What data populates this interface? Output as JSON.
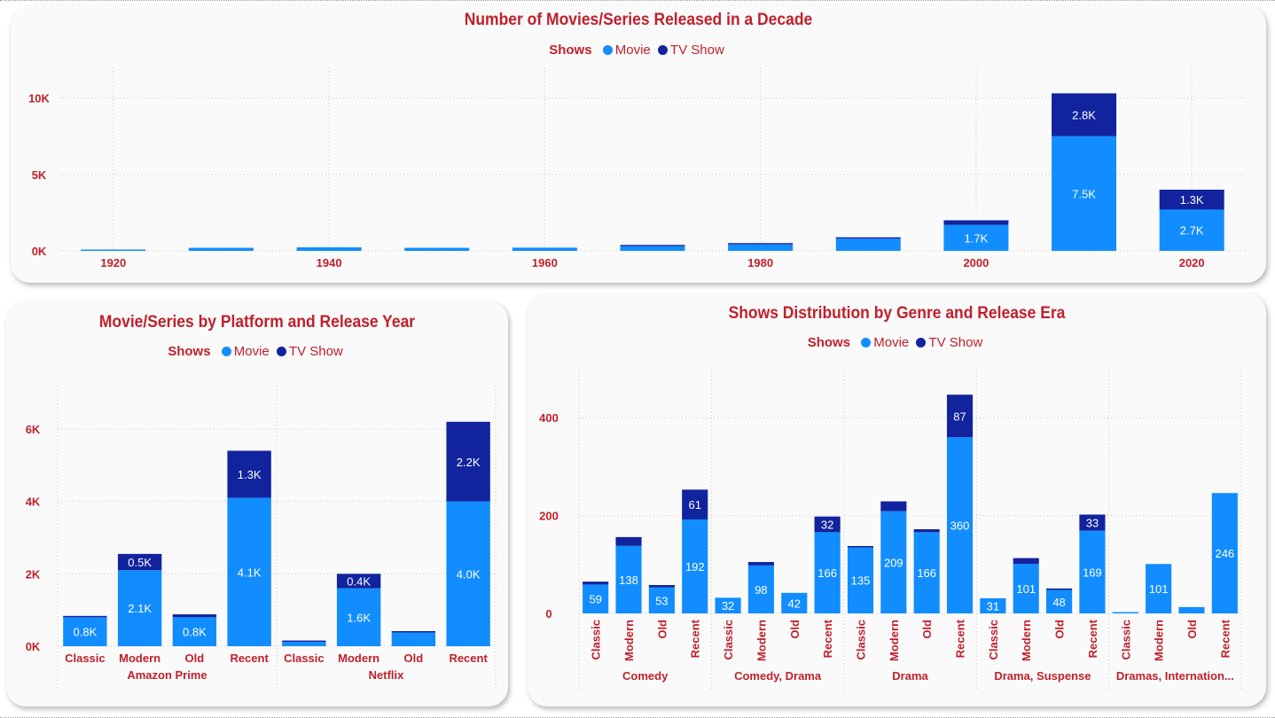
{
  "colors": {
    "movie": "#118dff",
    "tv": "#12239e",
    "title": "#c0202b",
    "label": "#ffffff",
    "grid": "#c8c8c8"
  },
  "chart_data": [
    {
      "id": "decade",
      "type": "bar",
      "stacked": true,
      "title": "Number of Movies/Series Released in a Decade",
      "legend_title": "Shows",
      "categories": [
        "1920",
        "1930",
        "1940",
        "1950",
        "1960",
        "1970",
        "1980",
        "1990",
        "2000",
        "2010",
        "2020"
      ],
      "tick_labels": [
        "1920",
        "",
        "1940",
        "",
        "1960",
        "",
        "1980",
        "",
        "2000",
        "",
        "2020"
      ],
      "series": [
        {
          "name": "Movie",
          "values": [
            50,
            200,
            230,
            200,
            210,
            300,
            420,
            800,
            1700,
            7500,
            2700
          ],
          "labels": [
            "",
            "",
            "",
            "",
            "",
            "",
            "",
            "",
            "1.7K",
            "7.5K",
            "2.7K"
          ]
        },
        {
          "name": "TV Show",
          "values": [
            0,
            0,
            0,
            0,
            0,
            10,
            20,
            60,
            300,
            2800,
            1300
          ],
          "labels": [
            "",
            "",
            "",
            "",
            "",
            "",
            "",
            "",
            "",
            "2.8K",
            "1.3K"
          ]
        }
      ],
      "y_ticks": [
        0,
        5000,
        10000
      ],
      "y_tick_labels": [
        "0K",
        "5K",
        "10K"
      ],
      "ylim": [
        0,
        12000
      ],
      "grid": true,
      "legend_position": "top-center"
    },
    {
      "id": "platform",
      "type": "bar",
      "stacked": true,
      "title": "Movie/Series by Platform and Release Year",
      "legend_title": "Shows",
      "categories": [
        "Classic",
        "Modern",
        "Old",
        "Recent",
        "Classic",
        "Modern",
        "Old",
        "Recent"
      ],
      "groups": [
        {
          "name": "Amazon Prime",
          "count": 4
        },
        {
          "name": "Netflix",
          "count": 4
        }
      ],
      "series": [
        {
          "name": "Movie",
          "values": [
            800,
            2100,
            800,
            4100,
            120,
            1600,
            380,
            4000
          ],
          "labels": [
            "0.8K",
            "2.1K",
            "0.8K",
            "4.1K",
            "",
            "1.6K",
            "",
            "4.0K"
          ]
        },
        {
          "name": "TV Show",
          "values": [
            30,
            450,
            80,
            1300,
            10,
            400,
            30,
            2200
          ],
          "labels": [
            "",
            "0.5K",
            "",
            "1.3K",
            "",
            "0.4K",
            "",
            "2.2K"
          ]
        }
      ],
      "y_ticks": [
        0,
        2000,
        4000,
        6000
      ],
      "y_tick_labels": [
        "0K",
        "2K",
        "4K",
        "6K"
      ],
      "ylim": [
        0,
        7200
      ],
      "grid": true,
      "legend_position": "top-center"
    },
    {
      "id": "genre",
      "type": "bar",
      "stacked": true,
      "title": "Shows Distribution by Genre and Release Era",
      "legend_title": "Shows",
      "categories": [
        "Classic",
        "Modern",
        "Old",
        "Recent",
        "Classic",
        "Modern",
        "Old",
        "Recent",
        "Classic",
        "Modern",
        "Old",
        "Recent",
        "Classic",
        "Modern",
        "Old",
        "Recent",
        "Classic",
        "Modern",
        "Old",
        "Recent"
      ],
      "groups": [
        {
          "name": "Comedy",
          "count": 4
        },
        {
          "name": "Comedy, Drama",
          "count": 4
        },
        {
          "name": "Drama",
          "count": 4
        },
        {
          "name": "Drama, Suspense",
          "count": 4
        },
        {
          "name": "Dramas, Internation...",
          "count": 4
        }
      ],
      "series": [
        {
          "name": "Movie",
          "values": [
            59,
            138,
            53,
            192,
            32,
            98,
            42,
            166,
            135,
            209,
            166,
            360,
            31,
            101,
            48,
            169,
            2,
            101,
            13,
            246
          ],
          "labels": [
            "59",
            "138",
            "53",
            "192",
            "32",
            "98",
            "42",
            "166",
            "135",
            "209",
            "166",
            "360",
            "31",
            "101",
            "48",
            "169",
            "",
            "101",
            "",
            "246"
          ]
        },
        {
          "name": "TV Show",
          "values": [
            6,
            18,
            5,
            61,
            0,
            7,
            0,
            32,
            2,
            20,
            6,
            87,
            0,
            12,
            3,
            33,
            0,
            0,
            0,
            0
          ],
          "labels": [
            "",
            "",
            "",
            "61",
            "",
            "",
            "",
            "32",
            "",
            "",
            "",
            "87",
            "",
            "",
            "",
            "33",
            "",
            "",
            "",
            ""
          ]
        }
      ],
      "y_ticks": [
        0,
        200,
        400
      ],
      "y_tick_labels": [
        "0",
        "200",
        "400"
      ],
      "ylim": [
        0,
        500
      ],
      "grid": true,
      "legend_position": "top-center"
    }
  ]
}
